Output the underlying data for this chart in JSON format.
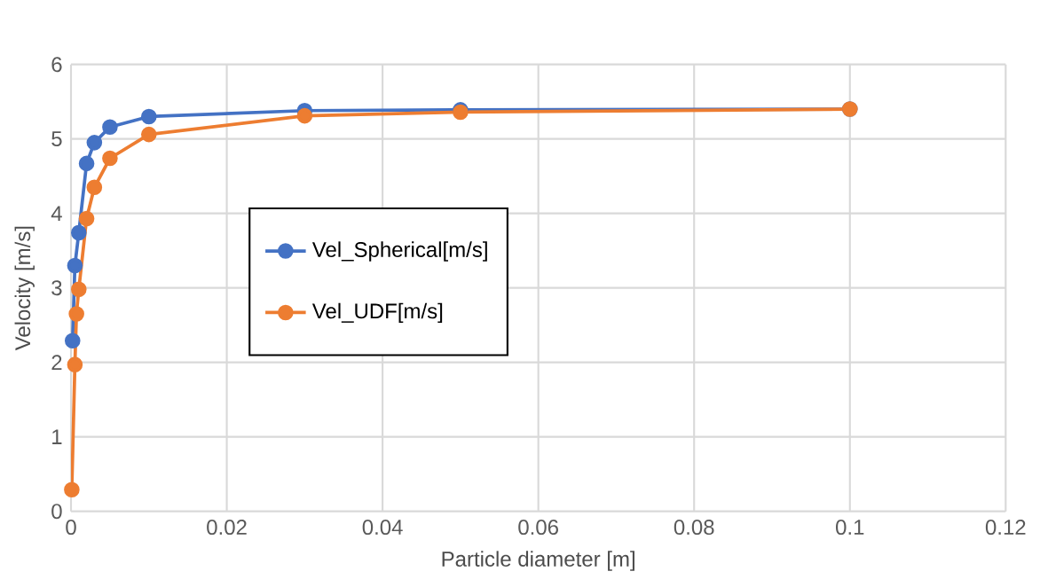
{
  "chart_data": {
    "type": "line",
    "xlabel": "Particle diameter [m]",
    "ylabel": "Velocity [m/s]",
    "xlim": [
      0,
      0.12
    ],
    "xticks": [
      0,
      0.02,
      0.04,
      0.06,
      0.08,
      0.1,
      0.12
    ],
    "ylim": [
      0,
      6
    ],
    "yticks": [
      0,
      1,
      2,
      3,
      4,
      5,
      6
    ],
    "grid": true,
    "legend": "left",
    "marker": "circle",
    "line_style": "solid",
    "series": [
      {
        "name": "Vel_Spherical[m/s]",
        "color": "#4472c4",
        "x": [
          0.0002,
          0.0005,
          0.001,
          0.002,
          0.003,
          0.005,
          0.01,
          0.03,
          0.05,
          0.1
        ],
        "values": [
          2.29,
          3.3,
          3.74,
          4.67,
          4.95,
          5.16,
          5.3,
          5.38,
          5.39,
          5.4
        ]
      },
      {
        "name": "Vel_UDF[m/s]",
        "color": "#ed7d31",
        "x": [
          0.0001,
          0.0005,
          0.0007,
          0.001,
          0.002,
          0.003,
          0.005,
          0.01,
          0.03,
          0.05,
          0.1
        ],
        "values": [
          0.29,
          1.97,
          2.65,
          2.98,
          3.93,
          4.35,
          4.74,
          5.06,
          5.31,
          5.36,
          5.4
        ]
      }
    ]
  }
}
